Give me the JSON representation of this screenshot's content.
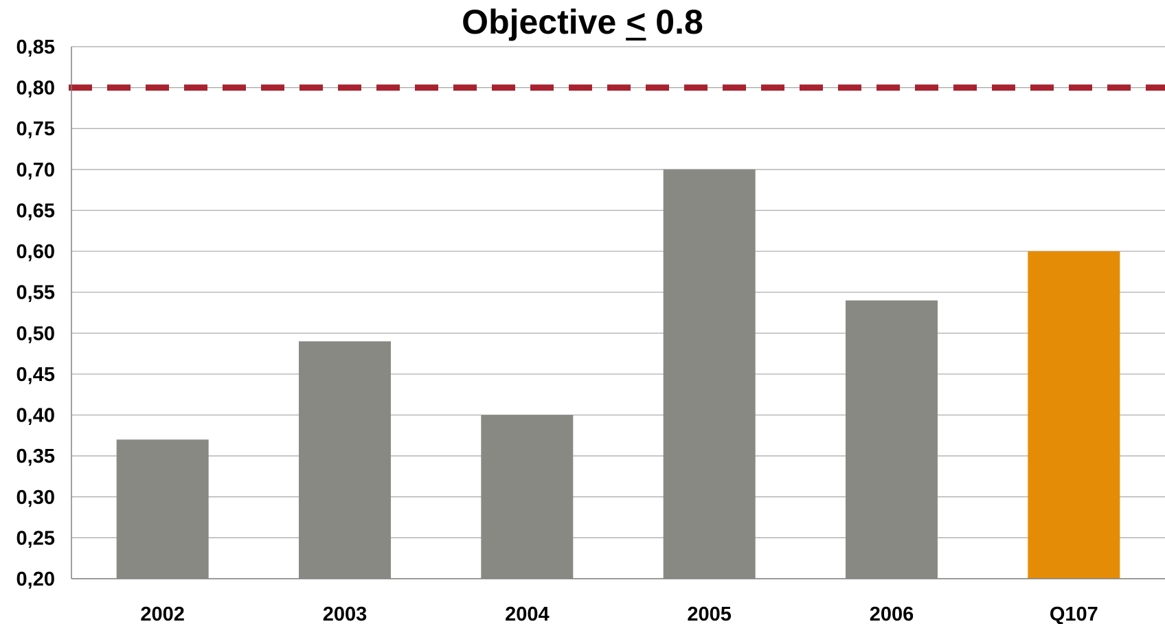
{
  "chart_data": {
    "type": "bar",
    "title_prefix": "Objective",
    "title_operator": "<",
    "title_value": "0.8",
    "categories": [
      "2002",
      "2003",
      "2004",
      "2005",
      "2006",
      "Q107"
    ],
    "values": [
      0.37,
      0.49,
      0.4,
      0.7,
      0.54,
      0.6
    ],
    "bar_colors": [
      "#898984",
      "#898984",
      "#898984",
      "#898984",
      "#898984",
      "#E58C07"
    ],
    "ylim": [
      0.2,
      0.85
    ],
    "yticks": [
      "0,20",
      "0,25",
      "0,30",
      "0,35",
      "0,40",
      "0,45",
      "0,50",
      "0,55",
      "0,60",
      "0,65",
      "0,70",
      "0,75",
      "0,80",
      "0,85"
    ],
    "ytick_values": [
      0.2,
      0.25,
      0.3,
      0.35,
      0.4,
      0.45,
      0.5,
      0.55,
      0.6,
      0.65,
      0.7,
      0.75,
      0.8,
      0.85
    ],
    "target_line": {
      "value": 0.8,
      "color": "#A8232F",
      "style": "dashed"
    },
    "grid": true,
    "gridline_color": "#A6A6A6",
    "xlabel": "",
    "ylabel": ""
  }
}
